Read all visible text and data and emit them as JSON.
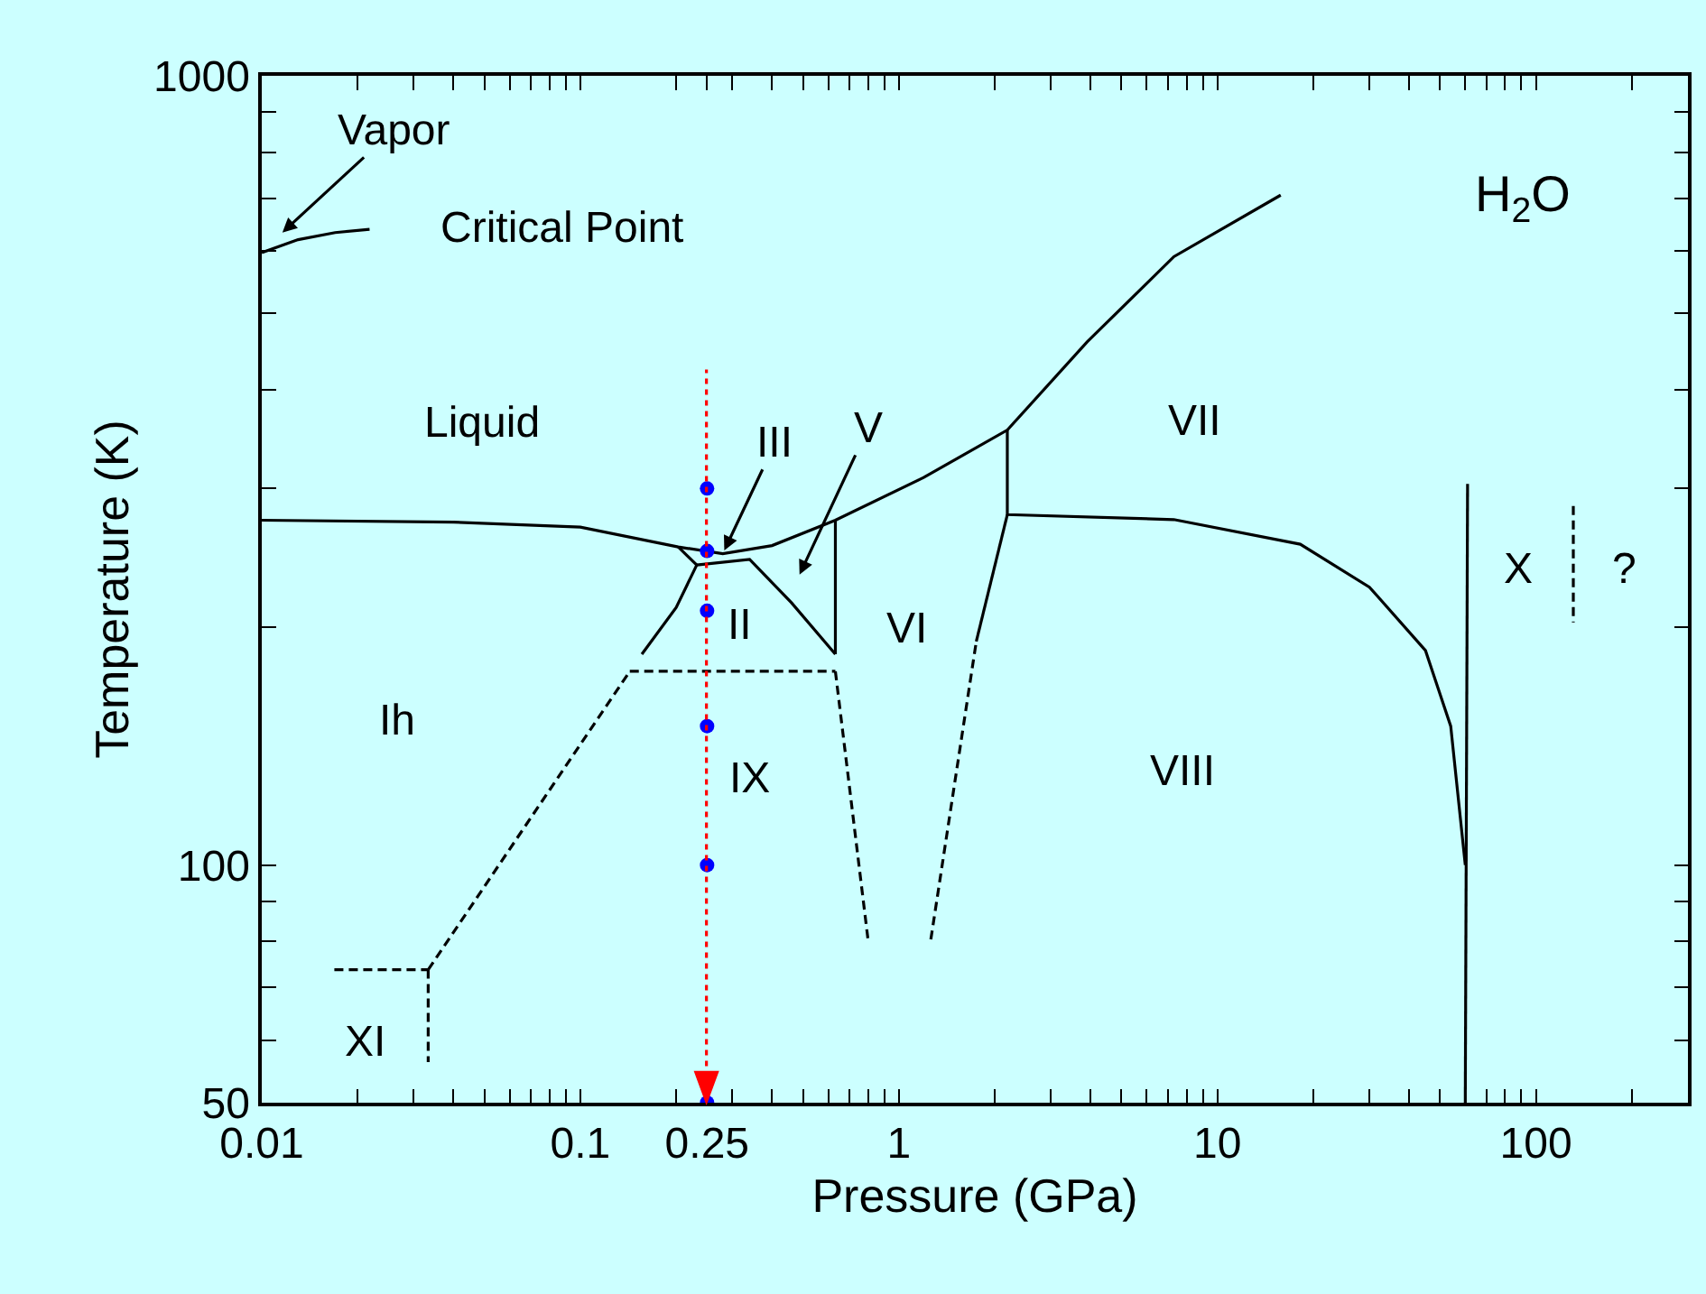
{
  "chart_data": {
    "type": "line",
    "xlabel": "Pressure (GPa)",
    "ylabel": "Temperature (K)",
    "log": "xy",
    "xlim": [
      0.01,
      300
    ],
    "ylim": [
      50,
      1000
    ],
    "xticks": [
      0.01,
      {
        "value": 0.02,
        "label": null
      },
      {
        "value": 0.03,
        "label": null
      },
      {
        "value": 0.04,
        "label": null
      },
      {
        "value": 0.05,
        "label": null
      },
      {
        "value": 0.06,
        "label": null
      },
      {
        "value": 0.07,
        "label": null
      },
      {
        "value": 0.08,
        "label": null
      },
      {
        "value": 0.09,
        "label": null
      },
      0.1,
      {
        "value": 0.2,
        "label": null
      },
      0.25,
      {
        "value": 0.3,
        "label": null
      },
      {
        "value": 0.4,
        "label": null
      },
      {
        "value": 0.5,
        "label": null
      },
      {
        "value": 0.6,
        "label": null
      },
      {
        "value": 0.7,
        "label": null
      },
      {
        "value": 0.8,
        "label": null
      },
      {
        "value": 0.9,
        "label": null
      },
      1,
      {
        "value": 2,
        "label": null
      },
      {
        "value": 3,
        "label": null
      },
      {
        "value": 4,
        "label": null
      },
      {
        "value": 5,
        "label": null
      },
      {
        "value": 6,
        "label": null
      },
      {
        "value": 7,
        "label": null
      },
      {
        "value": 8,
        "label": null
      },
      {
        "value": 9,
        "label": null
      },
      10,
      {
        "value": 20,
        "label": null
      },
      {
        "value": 30,
        "label": null
      },
      {
        "value": 40,
        "label": null
      },
      {
        "value": 50,
        "label": null
      },
      {
        "value": 60,
        "label": null
      },
      {
        "value": 70,
        "label": null
      },
      {
        "value": 80,
        "label": null
      },
      {
        "value": 90,
        "label": null
      },
      100,
      {
        "value": 200,
        "label": null
      }
    ],
    "yticks": [
      50,
      {
        "value": 60,
        "label": null
      },
      {
        "value": 70,
        "label": null
      },
      {
        "value": 80,
        "label": null
      },
      {
        "value": 90,
        "label": null
      },
      100,
      {
        "value": 200,
        "label": null
      },
      {
        "value": 300,
        "label": null
      },
      {
        "value": 400,
        "label": null
      },
      {
        "value": 500,
        "label": null
      },
      {
        "value": 600,
        "label": null
      },
      {
        "value": 700,
        "label": null
      },
      {
        "value": 800,
        "label": null
      },
      {
        "value": 900,
        "label": null
      },
      1000
    ],
    "grid": false,
    "marker": "none",
    "series": [
      {
        "color": "#000000",
        "line_style": "solid",
        "x": [
          0.01,
          0.013,
          0.017,
          0.0218
        ],
        "values": [
          597,
          620,
          633,
          639
        ]
      },
      {
        "color": "#000000",
        "line_style": "solid",
        "x": [
          0.01,
          0.04,
          0.1,
          0.203,
          0.28,
          0.4,
          0.632,
          1.2,
          2.19,
          3.9,
          7.3,
          15.8
        ],
        "values": [
          273.5,
          272,
          268,
          253,
          248,
          254,
          273.5,
          310,
          355.8,
          460,
          590,
          706
        ]
      },
      {
        "color": "#000000",
        "line_style": "solid",
        "x": [
          0.203,
          0.232,
          0.2,
          0.156
        ],
        "values": [
          253,
          240,
          212,
          185
        ]
      },
      {
        "color": "#000000",
        "line_style": "solid",
        "x": [
          0.232,
          0.34,
          0.46,
          0.632
        ],
        "values": [
          240,
          244,
          215,
          185
        ]
      },
      {
        "color": "#000000",
        "line_style": "solid",
        "x": [
          0.632,
          0.632
        ],
        "values": [
          273.5,
          185
        ]
      },
      {
        "color": "#000000",
        "line_style": "dashed",
        "x": [
          0.143,
          0.632
        ],
        "values": [
          176,
          176
        ]
      },
      {
        "color": "#000000",
        "line_style": "dashed",
        "x": [
          0.0333,
          0.143
        ],
        "values": [
          73.7,
          176
        ]
      },
      {
        "color": "#000000",
        "line_style": "dashed",
        "x": [
          0.0169,
          0.0333
        ],
        "values": [
          73.7,
          73.7
        ]
      },
      {
        "color": "#000000",
        "line_style": "dashed",
        "x": [
          0.0333,
          0.0333
        ],
        "values": [
          73.7,
          56.3
        ]
      },
      {
        "color": "#000000",
        "line_style": "dashed",
        "x": [
          0.632,
          0.8
        ],
        "values": [
          176,
          80.5
        ]
      },
      {
        "color": "#000000",
        "line_style": "dashed",
        "x": [
          1.26,
          1.75
        ],
        "values": [
          80.5,
          192
        ]
      },
      {
        "color": "#000000",
        "line_style": "solid",
        "x": [
          1.75,
          2.19
        ],
        "values": [
          192,
          278
        ]
      },
      {
        "color": "#000000",
        "line_style": "solid",
        "x": [
          2.19,
          2.19,
          7.3,
          18.2,
          30,
          45,
          54,
          60
        ],
        "values": [
          355.8,
          278,
          274,
          255,
          225,
          187,
          150,
          100
        ]
      },
      {
        "color": "#000000",
        "line_style": "solid",
        "x": [
          60,
          61
        ],
        "values": [
          50,
          304
        ]
      },
      {
        "color": "#000000",
        "line_style": "dashed",
        "x": [
          131,
          131
        ],
        "values": [
          285,
          203
        ]
      },
      {
        "type": "scatter",
        "marker": "circle",
        "color": "#0000ff",
        "x": [
          0.25,
          0.25,
          0.25,
          0.25,
          0.25,
          0.25
        ],
        "values": [
          300,
          250,
          210,
          150,
          100,
          50
        ]
      }
    ],
    "annotations": [
      "Vapor",
      "Critical Point",
      "H$_{2}$O",
      "Liquid",
      {
        "text": "III",
        "x": 0.28,
        "y": 248
      },
      "V",
      "II",
      "VI",
      "VII",
      "Ih",
      "IX",
      "VIII",
      "XI",
      "X",
      "?"
    ]
  }
}
